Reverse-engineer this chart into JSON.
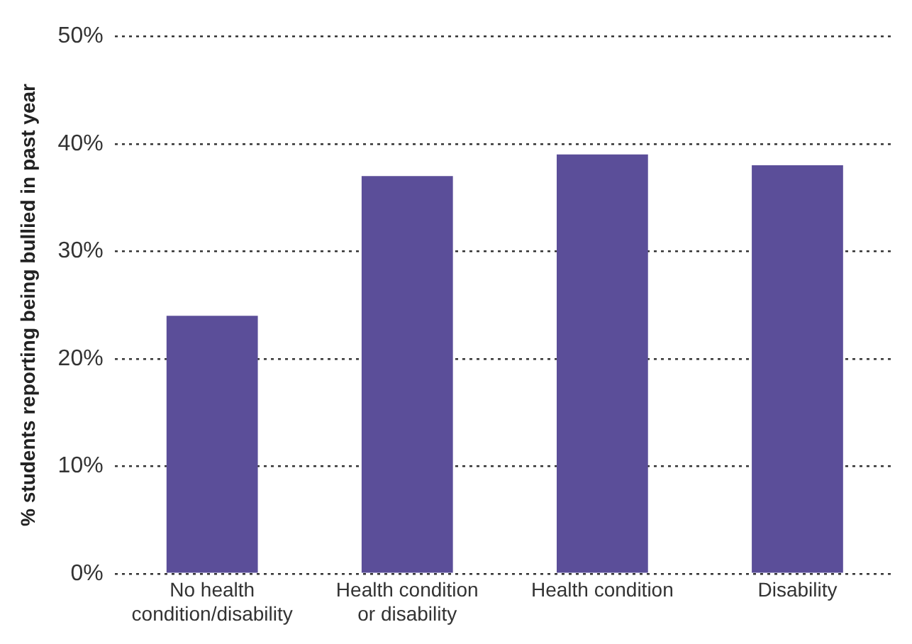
{
  "chart_data": {
    "type": "bar",
    "ylabel": "% students reporting being bullied in past year",
    "categories": [
      "No health condition/disability",
      "Health condition or disability",
      "Health condition",
      "Disability"
    ],
    "values": [
      24,
      37,
      39,
      38
    ],
    "color": "#5b4e99",
    "ylim": [
      0,
      50
    ],
    "yticks": [
      {
        "value": 0,
        "label": "0%"
      },
      {
        "value": 10,
        "label": "10%"
      },
      {
        "value": 20,
        "label": "20%"
      },
      {
        "value": 30,
        "label": "30%"
      },
      {
        "value": 40,
        "label": "40%"
      },
      {
        "value": 50,
        "label": "50%"
      }
    ],
    "grid": "y",
    "legend": false
  }
}
